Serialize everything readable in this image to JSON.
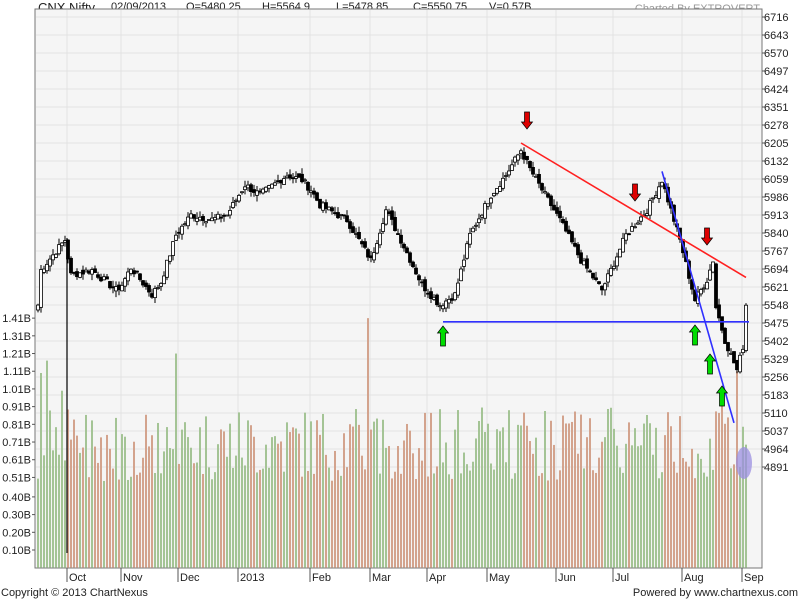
{
  "header": {
    "symbol": "CNX Nifty",
    "date": "02/09/2013",
    "open": "O=5480.25",
    "high": "H=5564.9",
    "low": "L=5478.85",
    "close": "C=5550.75",
    "volume": "V=0.57B",
    "credit": "Charted By EXTROVERT"
  },
  "footer": {
    "copyright": "Copyright © 2013 ChartNexus",
    "powered": "Powered by www.chartnexus.com"
  },
  "colors": {
    "up_volume": "#a4c495",
    "down_volume": "#d3a38d",
    "resistance_line": "#ff2020",
    "support_line": "#3030ff",
    "up_arrow": "#00dd00",
    "down_arrow": "#dd0000",
    "highlight": "#9b8fe0"
  },
  "chart_data": {
    "type": "candlestick",
    "title": "CNX Nifty",
    "price_axis": {
      "labels": [
        "6716",
        "6643",
        "6570",
        "6497",
        "6424",
        "6351",
        "6278",
        "6205",
        "6132",
        "6059",
        "5986",
        "5913",
        "5840",
        "5767",
        "5694",
        "5621",
        "5548",
        "5475",
        "5402",
        "5329",
        "5256",
        "5183",
        "5110",
        "5037",
        "4964",
        "4891"
      ],
      "range": [
        4891,
        6716
      ]
    },
    "volume_axis": {
      "labels": [
        "1.41B",
        "1.31B",
        "1.21B",
        "1.11B",
        "1.01B",
        "0.91B",
        "0.81B",
        "0.71B",
        "0.61B",
        "0.51B",
        "0.40B",
        "0.30B",
        "0.20B",
        "0.10B"
      ],
      "range": [
        0,
        1.41
      ]
    },
    "x_axis": {
      "labels": [
        "Oct",
        "Nov",
        "Dec",
        "2013",
        "Feb",
        "Mar",
        "Apr",
        "May",
        "Jun",
        "Jul",
        "Aug",
        "Sep"
      ],
      "label_day_index": [
        10,
        28,
        47,
        67,
        91,
        111,
        130,
        150,
        173,
        192,
        215,
        235
      ]
    },
    "num_days": 237,
    "close_keypoints": [
      [
        0,
        5548
      ],
      [
        1,
        5690
      ],
      [
        9,
        5812
      ],
      [
        11,
        5670
      ],
      [
        18,
        5690
      ],
      [
        26,
        5609
      ],
      [
        28,
        5630
      ],
      [
        31,
        5700
      ],
      [
        38,
        5590
      ],
      [
        41,
        5640
      ],
      [
        46,
        5832
      ],
      [
        51,
        5913
      ],
      [
        58,
        5895
      ],
      [
        63,
        5913
      ],
      [
        69,
        6035
      ],
      [
        74,
        5995
      ],
      [
        83,
        6075
      ],
      [
        88,
        6055
      ],
      [
        91,
        6015
      ],
      [
        94,
        5954
      ],
      [
        103,
        5893
      ],
      [
        111,
        5730
      ],
      [
        116,
        5933
      ],
      [
        121,
        5812
      ],
      [
        128,
        5630
      ],
      [
        134,
        5548
      ],
      [
        139,
        5590
      ],
      [
        144,
        5832
      ],
      [
        151,
        5994
      ],
      [
        156,
        6075
      ],
      [
        161,
        6176
      ],
      [
        164,
        6100
      ],
      [
        169,
        5994
      ],
      [
        174,
        5893
      ],
      [
        181,
        5730
      ],
      [
        188,
        5609
      ],
      [
        191,
        5690
      ],
      [
        196,
        5832
      ],
      [
        203,
        5933
      ],
      [
        208,
        6055
      ],
      [
        214,
        5812
      ],
      [
        219,
        5568
      ],
      [
        223,
        5650
      ],
      [
        225,
        5730
      ],
      [
        226,
        5540
      ],
      [
        229,
        5406
      ],
      [
        233,
        5284
      ],
      [
        235,
        5380
      ],
      [
        236,
        5550
      ]
    ],
    "volume_base_B": 0.7,
    "volume_spikes": [
      [
        1,
        1.1
      ],
      [
        3,
        1.17
      ],
      [
        8,
        1.0
      ],
      [
        46,
        1.21
      ],
      [
        110,
        1.41
      ],
      [
        228,
        0.95
      ],
      [
        233,
        1.11
      ]
    ],
    "annotations": {
      "resistance_line": {
        "from": [
          161,
          6205
        ],
        "to": [
          236,
          5660
        ]
      },
      "downtrend_line": {
        "from": [
          208,
          6090
        ],
        "to": [
          232,
          5070
        ]
      },
      "support_line": {
        "from": [
          135,
          5480
        ],
        "to": [
          237,
          5480
        ]
      },
      "sell_arrows_day": [
        163,
        199,
        223
      ],
      "buy_arrows_day": [
        135,
        219,
        224,
        228
      ]
    }
  }
}
